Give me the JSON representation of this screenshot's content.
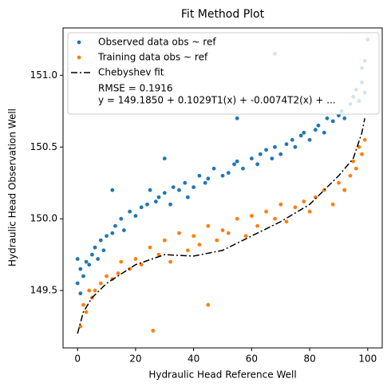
{
  "chart_data": {
    "type": "scatter",
    "title": "Fit Method Plot",
    "xlabel": "Hydraulic Head Reference Well",
    "ylabel": "Hydraulic Head Observation Well",
    "xlim": [
      -5,
      105
    ],
    "ylim": [
      149.1,
      151.33
    ],
    "xticks": [
      0,
      20,
      40,
      60,
      80,
      100
    ],
    "yticks": [
      149.5,
      {
        "value": 150,
        "label": "150.0"
      },
      150.5,
      {
        "value": 151,
        "label": "151.0"
      }
    ],
    "legend": "upper left",
    "annotations": [
      "RMSE = 0.1916",
      "y = 149.1850 + 0.1029T1(x) + -0.0074T2(x) + ..."
    ],
    "series": [
      {
        "name": "Observed data obs ~ ref",
        "color": "#1f77b4",
        "kind": "scatter",
        "x": [
          0,
          0,
          1,
          1,
          2,
          3,
          4,
          5,
          6,
          7,
          8,
          9,
          10,
          12,
          13,
          15,
          16,
          18,
          20,
          22,
          24,
          25,
          27,
          28,
          30,
          32,
          33,
          35,
          37,
          38,
          40,
          42,
          44,
          45,
          47,
          50,
          52,
          54,
          55,
          57,
          60,
          62,
          63,
          65,
          67,
          68,
          70,
          72,
          74,
          75,
          77,
          78,
          80,
          82,
          83,
          85,
          86,
          88,
          90,
          91,
          92,
          94,
          95,
          96,
          97,
          98,
          98,
          99,
          99,
          100,
          12,
          30,
          55,
          68,
          92
        ],
        "values": [
          149.55,
          149.72,
          149.48,
          149.65,
          149.6,
          149.7,
          149.68,
          149.75,
          149.8,
          149.72,
          149.85,
          149.78,
          149.88,
          149.9,
          149.95,
          150.0,
          149.92,
          150.05,
          150.02,
          150.08,
          150.1,
          150.2,
          150.12,
          150.15,
          150.18,
          150.1,
          150.22,
          150.2,
          150.25,
          150.15,
          150.22,
          150.3,
          150.25,
          150.28,
          150.35,
          150.3,
          150.32,
          150.38,
          150.4,
          150.35,
          150.42,
          150.38,
          150.45,
          150.48,
          150.42,
          150.5,
          150.45,
          150.52,
          150.55,
          150.5,
          150.58,
          150.6,
          150.55,
          150.62,
          150.65,
          150.6,
          150.7,
          150.68,
          150.72,
          150.75,
          150.7,
          150.8,
          150.85,
          150.9,
          150.82,
          150.95,
          151.05,
          151.1,
          150.88,
          151.25,
          150.2,
          150.42,
          150.7,
          151.15,
          150.2
        ]
      },
      {
        "name": "Training data obs ~ ref",
        "color": "#ff7f0e",
        "kind": "scatter",
        "x": [
          1,
          2,
          3,
          4,
          5,
          6,
          8,
          10,
          12,
          14,
          15,
          18,
          20,
          22,
          25,
          28,
          30,
          32,
          35,
          38,
          40,
          42,
          45,
          48,
          50,
          52,
          55,
          58,
          60,
          62,
          65,
          68,
          70,
          72,
          75,
          78,
          80,
          82,
          85,
          88,
          90,
          92,
          94,
          95,
          96,
          97,
          98,
          99,
          26,
          45
        ],
        "values": [
          149.25,
          149.4,
          149.35,
          149.5,
          149.45,
          149.5,
          149.55,
          149.6,
          149.58,
          149.62,
          149.7,
          149.65,
          149.72,
          149.68,
          149.8,
          149.75,
          149.85,
          149.7,
          149.9,
          149.78,
          149.88,
          149.82,
          149.95,
          149.85,
          149.92,
          149.9,
          150.0,
          149.88,
          150.02,
          149.95,
          150.05,
          150.0,
          150.1,
          149.98,
          150.08,
          150.12,
          150.05,
          150.15,
          150.2,
          150.1,
          150.25,
          150.2,
          150.3,
          150.4,
          150.35,
          150.5,
          150.45,
          150.55,
          149.22,
          149.4
        ]
      },
      {
        "name": "Chebyshev fit",
        "color": "#000000",
        "kind": "line",
        "x": [
          0,
          2,
          5,
          10,
          20,
          30,
          40,
          50,
          60,
          70,
          80,
          90,
          95,
          98,
          99
        ],
        "values": [
          149.2,
          149.35,
          149.45,
          149.55,
          149.68,
          149.75,
          149.74,
          149.78,
          149.88,
          149.98,
          150.1,
          150.3,
          150.42,
          150.6,
          150.7
        ]
      }
    ]
  }
}
